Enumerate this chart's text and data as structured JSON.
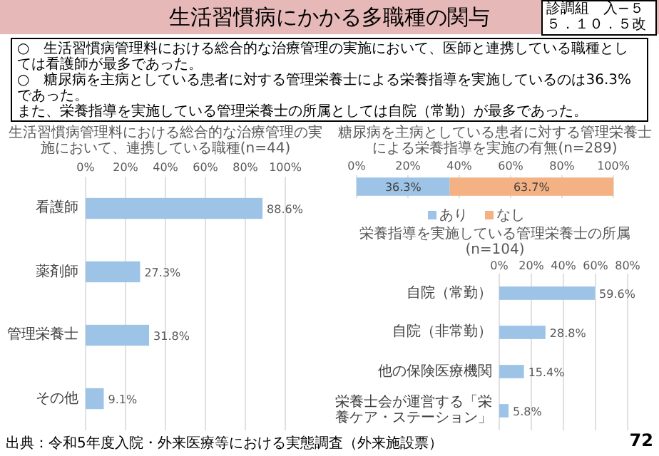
{
  "chart_data": [
    {
      "type": "other",
      "title": "生活習慣病にかかる多職種の関与",
      "annotations": [
        "診調組　入−５",
        "５．１０．５改",
        "○　生活習慣病管理料における総合的な治療管理の実施において、医師と連携している職種としては看護師が最多であった。",
        "○　糖尿病を主病としている患者に対する管理栄養士による栄養指導を実施しているのは36.3%であった。",
        "また、栄養指導を実施している管理栄養士の所属としては自院（常勤）が最多であった。",
        "出典：令和5年度入院・外来医療等における実態調査（外来施設票）",
        "72"
      ]
    },
    {
      "type": "bar",
      "orientation": "horizontal",
      "title": "生活習慣病管理料における総合的な治療管理の実施において、連携している職種(n=44)",
      "categories": [
        "看護師",
        "薬剤師",
        "管理栄養士",
        "その他"
      ],
      "values": [
        88.6,
        27.3,
        31.8,
        9.1
      ],
      "color": "#9dc3e6",
      "value_labels": [
        "88.6%",
        "27.3%",
        "31.8%",
        "9.1%"
      ],
      "xlim": [
        0,
        100
      ],
      "xticks": [
        {
          "value": 0,
          "label": "0%"
        },
        {
          "value": 20,
          "label": "20%"
        },
        {
          "value": 40,
          "label": "40%"
        },
        {
          "value": 60,
          "label": "60%"
        },
        {
          "value": 80,
          "label": "80%"
        },
        {
          "value": 100,
          "label": "100%"
        }
      ],
      "grid": "x"
    },
    {
      "type": "bar",
      "orientation": "horizontal",
      "stacked": true,
      "title": "糖尿病を主病としている患者に対する管理栄養士による栄養指導を実施の有無(n=289)",
      "categories": [
        null
      ],
      "series": [
        {
          "name": "あり",
          "color": "#9dc3e6",
          "values": [
            36.3
          ],
          "value_labels": [
            "36.3%"
          ]
        },
        {
          "name": "なし",
          "color": "#f4b183",
          "values": [
            63.7
          ],
          "value_labels": [
            "63.7%"
          ]
        }
      ],
      "xlim": [
        0,
        100
      ],
      "xticks": [
        {
          "value": 0,
          "label": "0%"
        },
        {
          "value": 20,
          "label": "20%"
        },
        {
          "value": 40,
          "label": "40%"
        },
        {
          "value": 60,
          "label": "60%"
        },
        {
          "value": 80,
          "label": "80%"
        },
        {
          "value": 100,
          "label": "100%"
        }
      ],
      "grid": "x",
      "legend": "bottom"
    },
    {
      "type": "bar",
      "orientation": "horizontal",
      "title": "栄養指導を実施している管理栄養士の所属(n=104)",
      "categories": [
        "自院（常勤）",
        "自院（非常勤）",
        "他の保険医療機関",
        "栄養士会が運営する「栄養ケア・ステーション」"
      ],
      "values": [
        59.6,
        28.8,
        15.4,
        5.8
      ],
      "color": "#9dc3e6",
      "value_labels": [
        "59.6%",
        "28.8%",
        "15.4%",
        "5.8%"
      ],
      "xlim": [
        0,
        80
      ],
      "xticks": [
        {
          "value": 0,
          "label": "0%"
        },
        {
          "value": 20,
          "label": "20%"
        },
        {
          "value": 40,
          "label": "40%"
        },
        {
          "value": 60,
          "label": "60%"
        },
        {
          "value": 80,
          "label": "80%"
        }
      ],
      "grid": "x"
    }
  ]
}
